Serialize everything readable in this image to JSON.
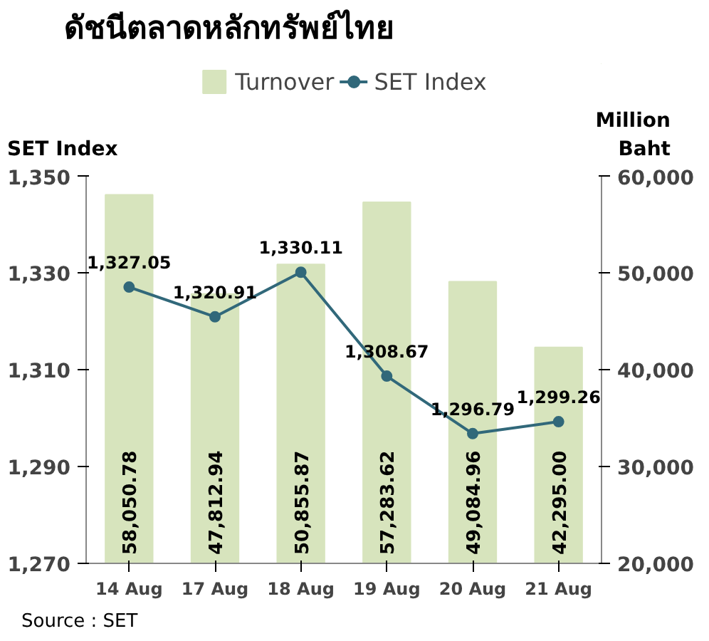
{
  "chart_data": {
    "type": "bar",
    "title": "ดัชนีตลาดหลักทรัพย์ไทย",
    "ylabel": "SET Index",
    "y2label": "Million Baht",
    "categories": [
      "14 Aug",
      "17 Aug",
      "18 Aug",
      "19 Aug",
      "20 Aug",
      "21 Aug"
    ],
    "series": [
      {
        "name": "Turnover",
        "axis": "y2",
        "color": "#d7e4bd",
        "values": [
          58050.78,
          47812.94,
          50855.87,
          57283.62,
          49084.96,
          42295.0
        ],
        "value_labels": [
          "58,050.78",
          "47,812.94",
          "50,855.87",
          "57,283.62",
          "49,084.96",
          "42,295.00"
        ]
      },
      {
        "name": "SET Index",
        "type": "line",
        "color": "#31687a",
        "values": [
          1327.05,
          1320.91,
          1330.11,
          1308.67,
          1296.79,
          1299.26
        ],
        "value_labels": [
          "1,327.05",
          "1,320.91",
          "1,330.11",
          "1,308.67",
          "1,296.79",
          "1,299.26"
        ]
      }
    ],
    "ylim": [
      1270,
      1350
    ],
    "yticks": [
      {
        "value": 1270,
        "label": "1,270"
      },
      {
        "value": 1290,
        "label": "1,290"
      },
      {
        "value": 1310,
        "label": "1,310"
      },
      {
        "value": 1330,
        "label": "1,330"
      },
      {
        "value": 1350,
        "label": "1,350"
      }
    ],
    "y2lim": [
      20000,
      60000
    ],
    "y2ticks": [
      {
        "value": 20000,
        "label": "20,000"
      },
      {
        "value": 30000,
        "label": "30,000"
      },
      {
        "value": 40000,
        "label": "40,000"
      },
      {
        "value": 50000,
        "label": "50,000"
      },
      {
        "value": 60000,
        "label": "60,000"
      }
    ],
    "grid": false,
    "legend": "top",
    "marker": "circle",
    "line_style": "solid",
    "annotations": [
      "Source : SET"
    ]
  }
}
